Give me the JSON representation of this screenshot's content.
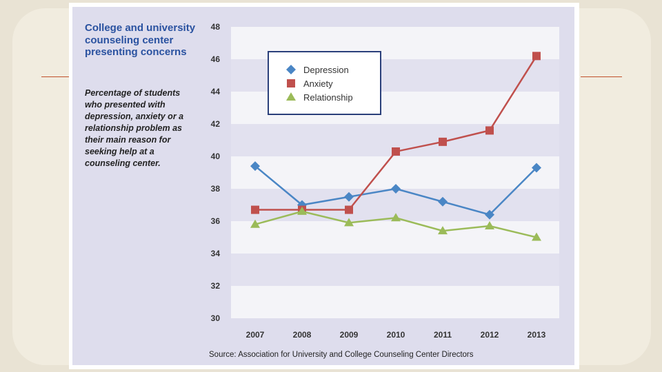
{
  "colors": {
    "depression": "#4a86c5",
    "anxiety": "#c0504d",
    "relationship": "#9bbb59",
    "title": "#2a52a0"
  },
  "chart_data": {
    "type": "line",
    "title": "College and university counseling center presenting concerns",
    "subtitle": "Percentage of students who presented with depression, anxiety or a relationship problem as their main reason for seeking help at a counseling center.",
    "categories": [
      "2007",
      "2008",
      "2009",
      "2010",
      "2011",
      "2012",
      "2013"
    ],
    "ylim": [
      30,
      48
    ],
    "yticks": [
      "30",
      "32",
      "34",
      "36",
      "38",
      "40",
      "42",
      "44",
      "46",
      "48"
    ],
    "series": [
      {
        "name": "Depression",
        "marker": "diamond",
        "values": [
          39.4,
          37.0,
          37.5,
          38.0,
          37.2,
          36.4,
          39.3
        ]
      },
      {
        "name": "Anxiety",
        "marker": "square",
        "values": [
          36.7,
          36.7,
          36.7,
          40.3,
          40.9,
          41.6,
          46.2
        ]
      },
      {
        "name": "Relationship",
        "marker": "triangle",
        "values": [
          35.8,
          36.6,
          35.9,
          36.2,
          35.4,
          35.7,
          35.0
        ]
      }
    ],
    "legend": [
      "Depression",
      "Anxiety",
      "Relationship"
    ],
    "source": "Source: Association for University and College Counseling Center Directors"
  }
}
